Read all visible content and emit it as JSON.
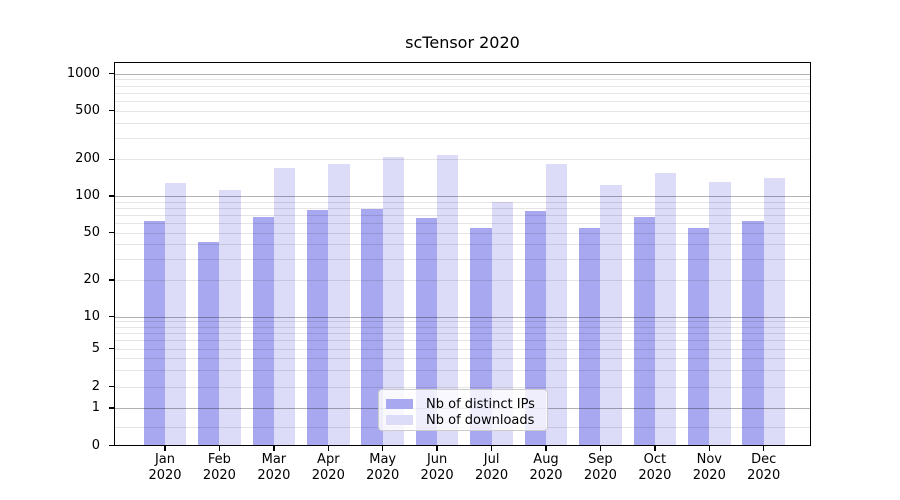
{
  "title": "scTensor 2020",
  "chart_data": {
    "type": "bar",
    "title": "scTensor 2020",
    "scale": "symlog-like (log above 1, linear segment 0-1)",
    "categories": [
      "Jan",
      "Feb",
      "Mar",
      "Apr",
      "May",
      "Jun",
      "Jul",
      "Aug",
      "Sep",
      "Oct",
      "Nov",
      "Dec"
    ],
    "category_year": "2020",
    "series": [
      {
        "name": "Nb of distinct IPs",
        "color": "#a8a8f0",
        "values": [
          62,
          42,
          67,
          77,
          78,
          66,
          55,
          75,
          54,
          67,
          54,
          62
        ]
      },
      {
        "name": "Nb of downloads",
        "color": "#dcdcf8",
        "values": [
          129,
          112,
          170,
          184,
          210,
          216,
          89,
          184,
          123,
          155,
          130,
          140
        ]
      }
    ],
    "y_ticks": [
      0,
      1,
      2,
      5,
      10,
      20,
      50,
      100,
      200,
      500,
      1000
    ],
    "y_minor_gridlines": [
      0.5,
      2,
      3,
      4,
      5,
      6,
      7,
      8,
      9,
      20,
      30,
      40,
      50,
      60,
      70,
      80,
      90,
      200,
      300,
      400,
      500,
      600,
      700,
      800,
      900
    ],
    "y_major_gridlines": [
      1,
      10,
      100,
      1000
    ],
    "ylim": [
      0,
      1500
    ],
    "grid": true,
    "legend_position": "lower center"
  },
  "legend": {
    "items": [
      {
        "label": "Nb of distinct IPs",
        "color": "#a8a8f0"
      },
      {
        "label": "Nb of downloads",
        "color": "#dcdcf8"
      }
    ]
  }
}
